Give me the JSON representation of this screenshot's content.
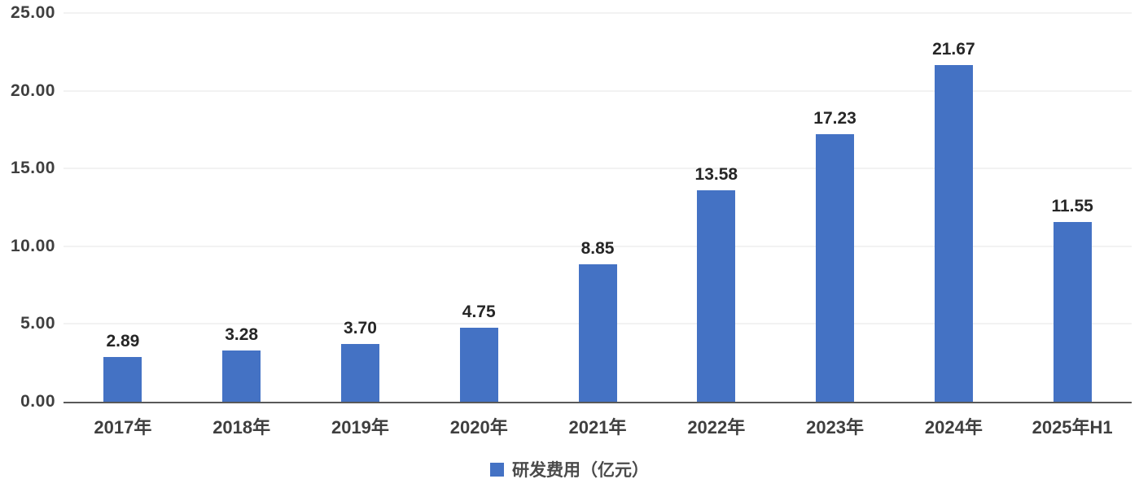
{
  "chart_data": {
    "type": "bar",
    "categories": [
      "2017年",
      "2018年",
      "2019年",
      "2020年",
      "2021年",
      "2022年",
      "2023年",
      "2024年",
      "2025年H1"
    ],
    "values": [
      2.89,
      3.28,
      3.7,
      4.75,
      8.85,
      13.58,
      17.23,
      21.67,
      11.55
    ],
    "value_labels": [
      "2.89",
      "3.28",
      "3.70",
      "4.75",
      "8.85",
      "13.58",
      "17.23",
      "21.67",
      "11.55"
    ],
    "title": "",
    "xlabel": "",
    "ylabel": "",
    "ylim": [
      0,
      25
    ],
    "ytick_interval": 5,
    "ytick_labels": [
      "0.00",
      "5.00",
      "10.00",
      "15.00",
      "20.00",
      "25.00"
    ],
    "grid": true,
    "legend_position": "bottom",
    "legend": [
      {
        "label": "研发费用（亿元）",
        "color": "#4472C4"
      }
    ],
    "colors": {
      "bar": "#4472C4",
      "grid_line": "#e4e4e4",
      "axis_line": "#595959",
      "tick_text": "#3f3f3f",
      "value_text": "#262626"
    }
  }
}
